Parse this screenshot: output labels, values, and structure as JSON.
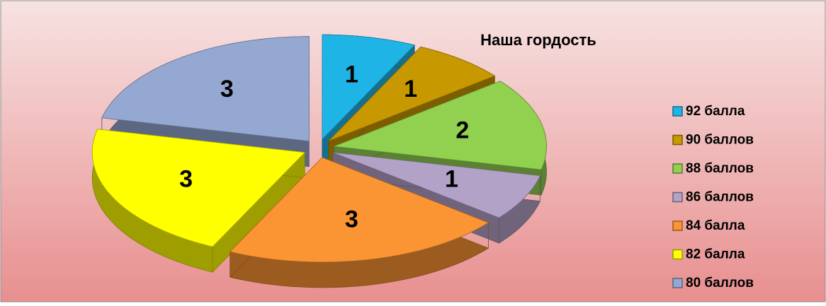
{
  "chart_data": {
    "type": "pie3d",
    "title": "Наша гордость",
    "categories": [
      "92 балла",
      "90 баллов",
      "88 баллов",
      "86 баллов",
      "84 балла",
      "82 балла",
      "80 баллов"
    ],
    "values": [
      1,
      1,
      2,
      1,
      3,
      3,
      3
    ],
    "colors": [
      "#1fb4e6",
      "#c89800",
      "#92d050",
      "#b3a2c7",
      "#fb9533",
      "#ffff00",
      "#95a8d2"
    ]
  }
}
